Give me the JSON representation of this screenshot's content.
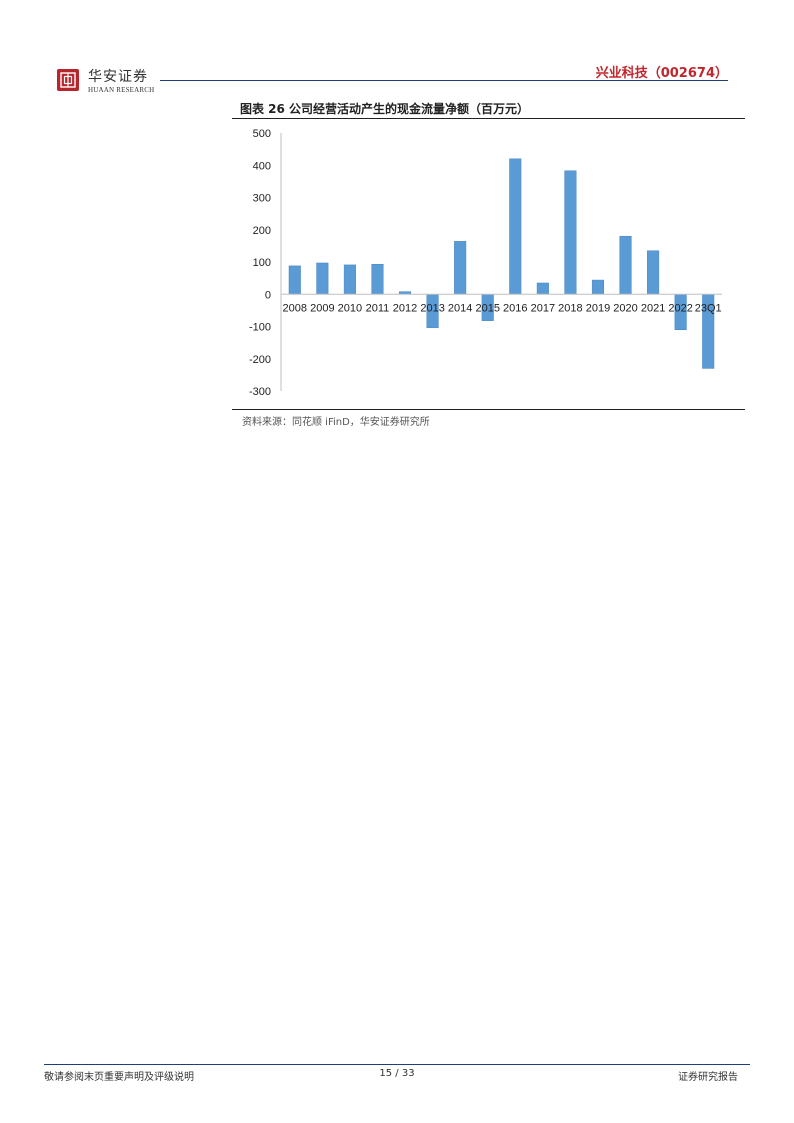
{
  "header": {
    "logo_icon": "huaan-seal-icon",
    "logo_name": "华安证券",
    "logo_sub": "HUAAN RESEARCH",
    "title": "兴业科技（002674）",
    "accent_color": "#c0262d",
    "rule_color": "#1f3f78"
  },
  "figure": {
    "title": "图表 26 公司经营活动产生的现金流量净额（百万元）",
    "source": "资料来源：同花顺 iFinD，华安证券研究所"
  },
  "chart_data": {
    "type": "bar",
    "categories": [
      "2008",
      "2009",
      "2010",
      "2011",
      "2012",
      "2013",
      "2014",
      "2015",
      "2016",
      "2017",
      "2018",
      "2019",
      "2020",
      "2021",
      "2022",
      "23Q1"
    ],
    "values": [
      88,
      97,
      91,
      93,
      8,
      -104,
      164,
      -82,
      420,
      35,
      383,
      44,
      180,
      135,
      -110,
      -230
    ],
    "ylim": [
      -300,
      500
    ],
    "yticks": [
      500,
      400,
      300,
      200,
      100,
      0,
      -100,
      -200,
      -300
    ],
    "bar_color": "#5b9bd5",
    "grid": false,
    "legend": "none"
  },
  "footer": {
    "left": "敬请参阅末页重要声明及评级说明",
    "page": "15 / 33",
    "right": "证券研究报告"
  }
}
